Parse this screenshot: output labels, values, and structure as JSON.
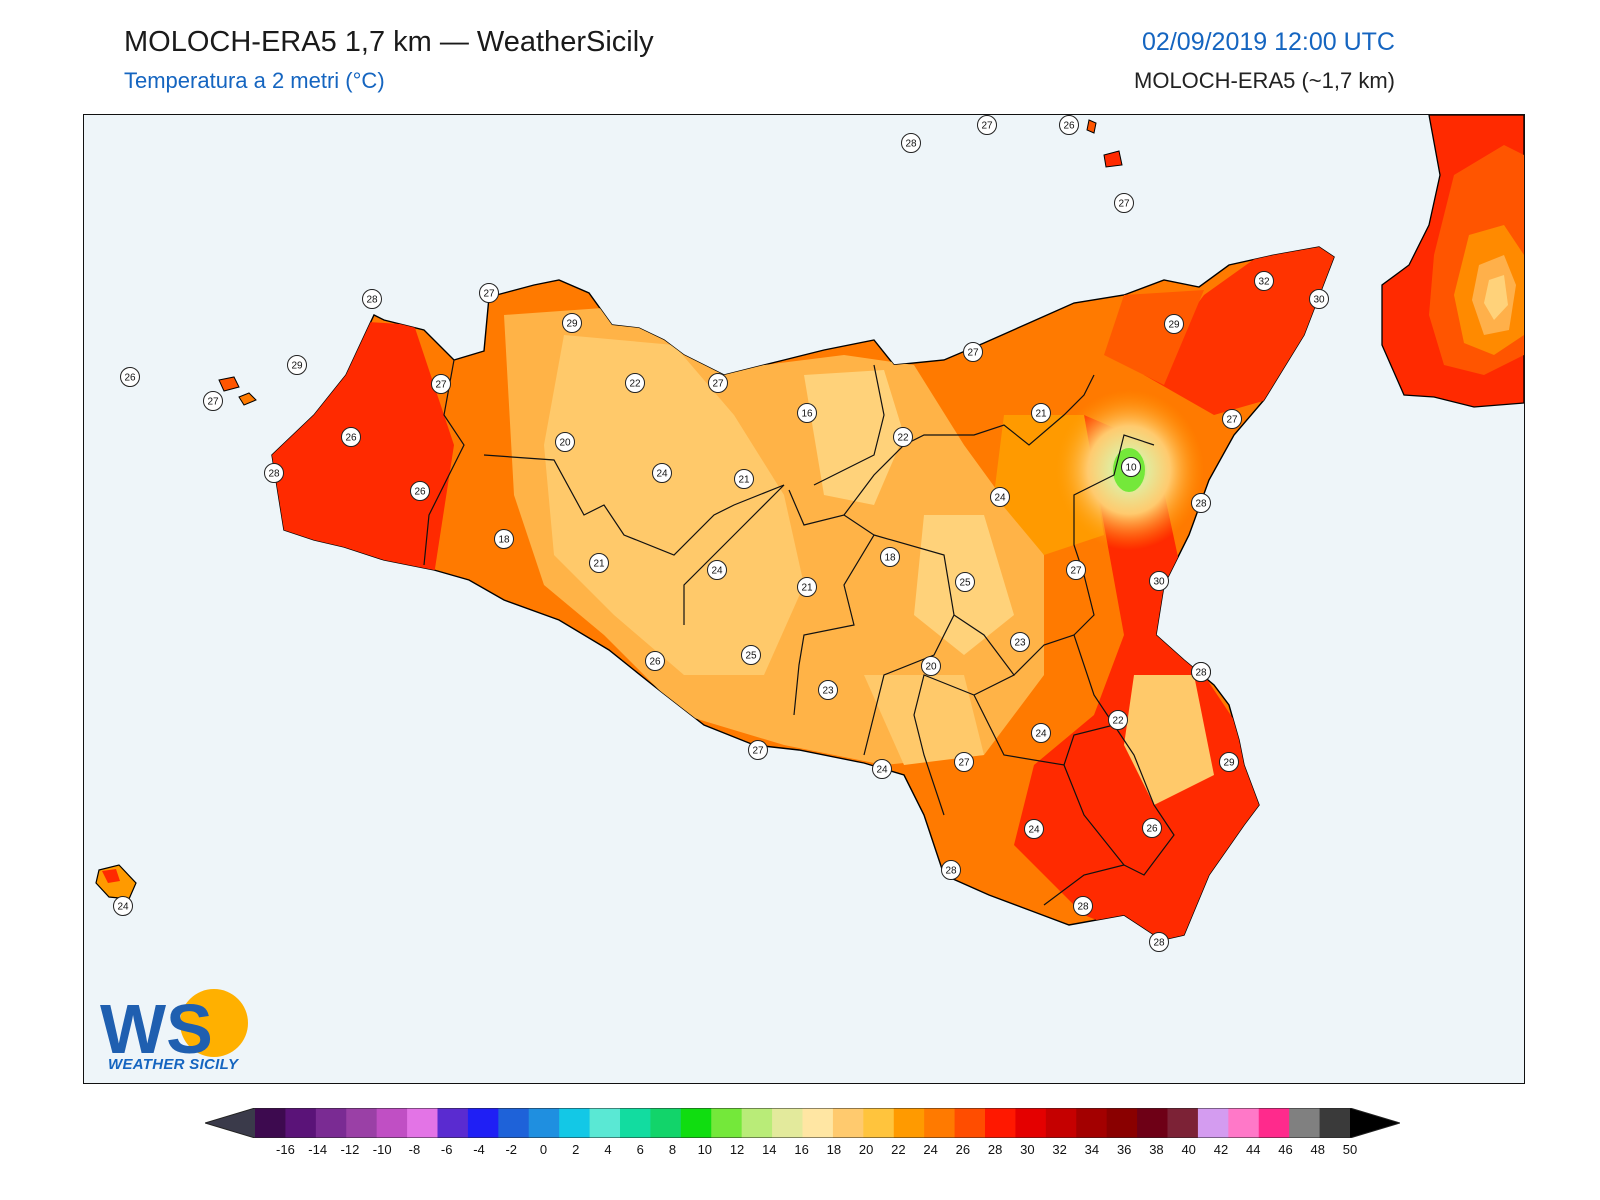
{
  "header": {
    "title": "MOLOCH-ERA5 1,7 km — WeatherSicily",
    "subtitle": "Temperatura a 2 metri (°C)",
    "datetime": "02/09/2019 12:00 UTC",
    "model": "MOLOCH-ERA5 (~1,7 km)"
  },
  "logo": {
    "initials": "WS",
    "name": "WEATHER SICILY"
  },
  "colors": {
    "sea": "#eef5f9",
    "hot": "#ff1e00",
    "warm": "#ff6a00",
    "mild": "#fcb030",
    "cool": "#ffd27a",
    "cold": "#a6e36a"
  },
  "map_labels": [
    {
      "value": "28"
    },
    {
      "value": "27"
    },
    {
      "value": "26"
    },
    {
      "value": "27"
    },
    {
      "value": "32"
    },
    {
      "value": "30"
    },
    {
      "value": "28"
    },
    {
      "value": "27"
    },
    {
      "value": "29"
    },
    {
      "value": "26"
    },
    {
      "value": "29"
    },
    {
      "value": "27"
    },
    {
      "value": "27"
    },
    {
      "value": "26"
    },
    {
      "value": "29"
    },
    {
      "value": "27"
    },
    {
      "value": "22"
    },
    {
      "value": "27"
    },
    {
      "value": "28"
    },
    {
      "value": "20"
    },
    {
      "value": "16"
    },
    {
      "value": "21"
    },
    {
      "value": "22"
    },
    {
      "value": "27"
    },
    {
      "value": "24"
    },
    {
      "value": "21"
    },
    {
      "value": "10"
    },
    {
      "value": "24"
    },
    {
      "value": "26"
    },
    {
      "value": "28"
    },
    {
      "value": "18"
    },
    {
      "value": "21"
    },
    {
      "value": "24"
    },
    {
      "value": "21"
    },
    {
      "value": "18"
    },
    {
      "value": "25"
    },
    {
      "value": "27"
    },
    {
      "value": "30"
    },
    {
      "value": "28"
    },
    {
      "value": "23"
    },
    {
      "value": "26"
    },
    {
      "value": "25"
    },
    {
      "value": "23"
    },
    {
      "value": "20"
    },
    {
      "value": "28"
    },
    {
      "value": "22"
    },
    {
      "value": "27"
    },
    {
      "value": "24"
    },
    {
      "value": "24"
    },
    {
      "value": "27"
    },
    {
      "value": "29"
    },
    {
      "value": "24"
    },
    {
      "value": "26"
    },
    {
      "value": "28"
    },
    {
      "value": "28"
    },
    {
      "value": "28"
    },
    {
      "value": "24"
    }
  ],
  "colorbar": {
    "labels": [
      "-16",
      "-14",
      "-12",
      "-10",
      "-8",
      "-6",
      "-4",
      "-2",
      "0",
      "2",
      "4",
      "6",
      "8",
      "10",
      "12",
      "14",
      "16",
      "18",
      "20",
      "22",
      "24",
      "26",
      "28",
      "30",
      "32",
      "34",
      "36",
      "38",
      "40",
      "42",
      "44",
      "46",
      "48",
      "50"
    ],
    "colors": [
      "#3d0a4f",
      "#5a1378",
      "#7a2b93",
      "#9a40a6",
      "#c04fc4",
      "#e374e6",
      "#5a2bd0",
      "#1f1ff5",
      "#1e62d9",
      "#1f8fe0",
      "#13c8e6",
      "#5ae8d4",
      "#12dca0",
      "#12d46a",
      "#10dd10",
      "#74e83a",
      "#b9ec78",
      "#e3ea9c",
      "#ffe6a3",
      "#ffca6e",
      "#ffc43d",
      "#ff9a00",
      "#ff7a00",
      "#ff4d00",
      "#ff1800",
      "#e40000",
      "#c50000",
      "#a30000",
      "#8a0000",
      "#6e0016",
      "#7c2236",
      "#d49cf0",
      "#ff78c8",
      "#ff2a8c",
      "#808080",
      "#3a3a3a"
    ]
  }
}
